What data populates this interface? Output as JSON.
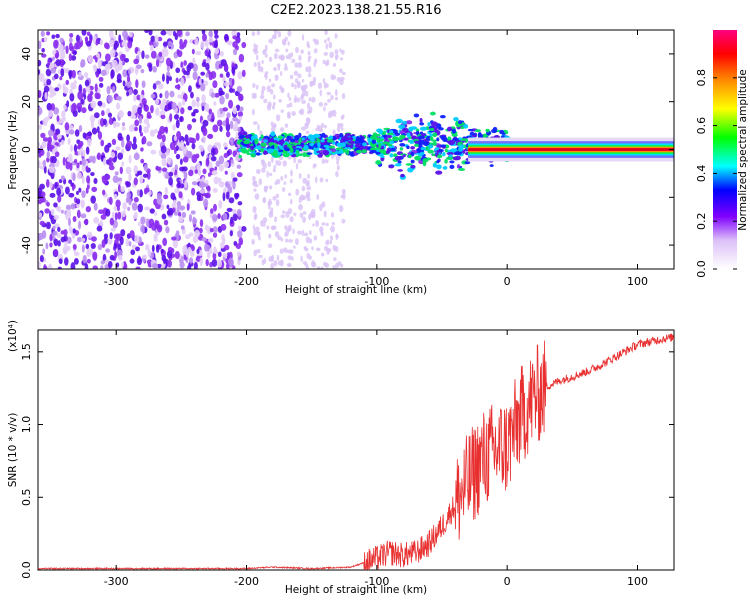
{
  "title": "C2E2.2023.138.21.55.R16",
  "colors": {
    "line": "#e83030",
    "axis": "#000000",
    "colorbar": [
      "#ffffff",
      "#e8d6f8",
      "#8000ff",
      "#0000ff",
      "#00ffff",
      "#00ff00",
      "#ffff00",
      "#ff8000",
      "#ff0000",
      "#ff0080"
    ]
  },
  "chart_data": [
    {
      "type": "heatmap",
      "xlabel": "Height of straight line (km)",
      "ylabel": "Frequency (Hz)",
      "xlim": [
        -360,
        128
      ],
      "ylim": [
        -50,
        50
      ],
      "xticks": [
        -300,
        -200,
        -100,
        0,
        100
      ],
      "xtick_labels": [
        "-300",
        "-200",
        "-100",
        "0",
        "100"
      ],
      "yticks": [
        -40,
        -20,
        0,
        20,
        40
      ],
      "ytick_labels": [
        "-40",
        "-20",
        "0",
        "20",
        "40"
      ],
      "colorbar": {
        "label": "Normalized spectral amplitude",
        "range": [
          0,
          1
        ],
        "ticks": [
          0.0,
          0.2,
          0.4,
          0.6,
          0.8
        ],
        "tick_labels": [
          "0.0",
          "0.2",
          "0.4",
          "0.6",
          "0.8"
        ]
      },
      "regions": [
        {
          "x_range": [
            -360,
            -202
          ],
          "pattern": "broadband noise",
          "amplitude": [
            0.05,
            0.15
          ]
        },
        {
          "x_range": [
            -195,
            -125
          ],
          "pattern": "sparse faint noise",
          "amplitude": [
            0.0,
            0.05
          ]
        },
        {
          "x_range": [
            -205,
            0
          ],
          "pattern": "signal band near 0 Hz",
          "center_hz": 0,
          "amplitude": [
            0.2,
            0.5
          ]
        },
        {
          "x_range": [
            -30,
            128
          ],
          "pattern": "coherent tone at 0 Hz",
          "center_hz": 0,
          "amplitude": [
            0.9,
            1.0
          ]
        }
      ]
    },
    {
      "type": "line",
      "xlabel": "Height of straight line (km)",
      "ylabel": "SNR (10 * v/v)",
      "y_multiplier": "(x10⁴)",
      "xlim": [
        -360,
        128
      ],
      "ylim": [
        0,
        1.65
      ],
      "xticks": [
        -300,
        -200,
        -100,
        0,
        100
      ],
      "xtick_labels": [
        "-300",
        "-200",
        "-100",
        "0",
        "100"
      ],
      "yticks": [
        0.0,
        0.5,
        1.0,
        1.5
      ],
      "ytick_labels": [
        "0.0",
        "0.5",
        "1.0",
        "1.5"
      ],
      "series": [
        {
          "x": [
            -360,
            -300,
            -250,
            -200,
            -180,
            -150,
            -120,
            -100,
            -90,
            -80,
            -70,
            -60,
            -50,
            -40,
            -30,
            -20,
            -10,
            0,
            10,
            20,
            30,
            40,
            50,
            60,
            70,
            80,
            90,
            100,
            110,
            120,
            128
          ],
          "y": [
            0.01,
            0.01,
            0.01,
            0.01,
            0.02,
            0.01,
            0.02,
            0.08,
            0.12,
            0.1,
            0.12,
            0.18,
            0.3,
            0.45,
            0.6,
            0.75,
            0.82,
            0.85,
            1.05,
            1.18,
            1.26,
            1.3,
            1.33,
            1.36,
            1.4,
            1.45,
            1.5,
            1.55,
            1.57,
            1.59,
            1.6
          ]
        }
      ]
    }
  ]
}
